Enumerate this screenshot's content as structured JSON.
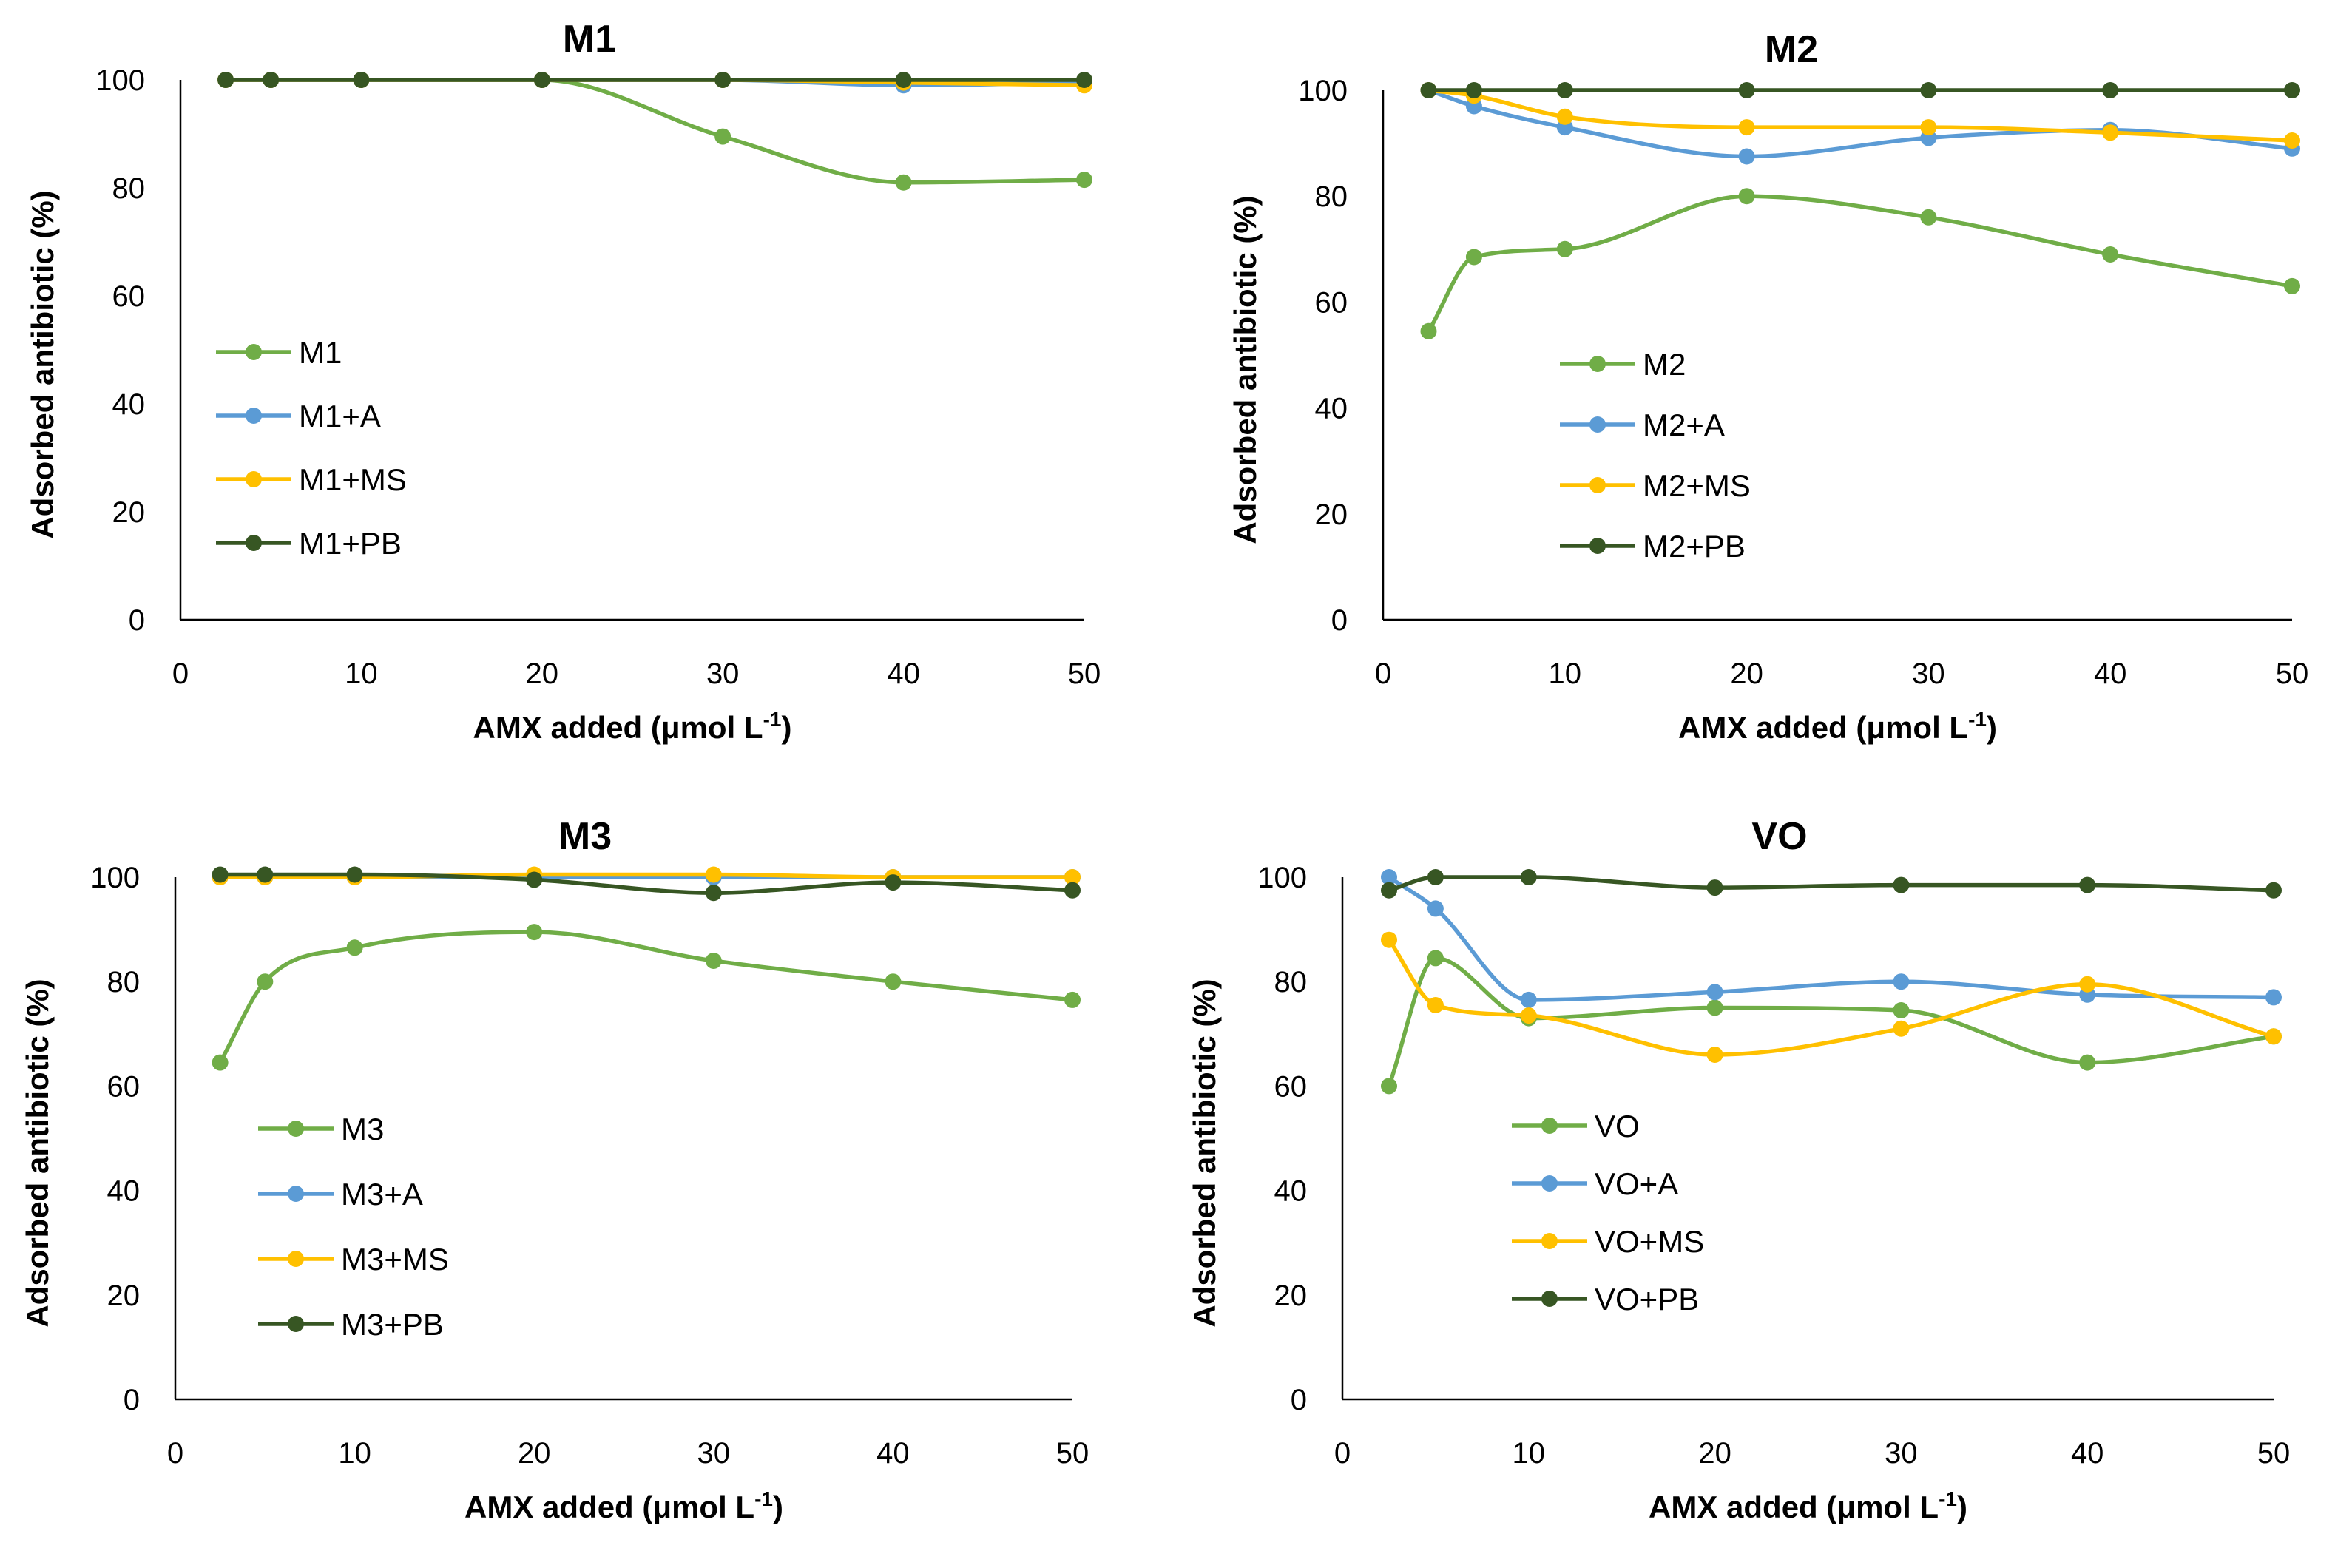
{
  "colors": {
    "green": "#70AD47",
    "blue": "#5B9BD5",
    "yellow": "#FFC000",
    "dark_green": "#375623"
  },
  "chart_data": [
    {
      "type": "line",
      "title": "M1",
      "xlabel": "AMX added (μmol L",
      "xlabel_sup": "-1",
      "xlabel_end": ")",
      "ylabel": "Adsorbed antibiotic (%)",
      "xlim": [
        0,
        50
      ],
      "ylim": [
        0,
        100
      ],
      "xticks": [
        0,
        10,
        20,
        30,
        40,
        50
      ],
      "yticks": [
        0,
        20,
        40,
        60,
        80,
        100
      ],
      "x": [
        2.5,
        5,
        10,
        20,
        30,
        40,
        50
      ],
      "series": [
        {
          "name": "M1",
          "color": "#70AD47",
          "values": [
            100,
            100,
            100,
            100,
            89.5,
            81,
            81.5
          ]
        },
        {
          "name": "M1+A",
          "color": "#5B9BD5",
          "values": [
            100,
            100,
            100,
            100,
            100,
            99,
            99.5
          ]
        },
        {
          "name": "M1+MS",
          "color": "#FFC000",
          "values": [
            100,
            100,
            100,
            100,
            100,
            99.5,
            99
          ]
        },
        {
          "name": "M1+PB",
          "color": "#375623",
          "values": [
            100,
            100,
            100,
            100,
            100,
            100,
            100
          ]
        }
      ]
    },
    {
      "type": "line",
      "title": "M2",
      "xlabel": "AMX added (μmol L",
      "xlabel_sup": "-1",
      "xlabel_end": ")",
      "ylabel": "Adsorbed antibiotic (%)",
      "xlim": [
        0,
        50
      ],
      "ylim": [
        0,
        100
      ],
      "xticks": [
        0,
        10,
        20,
        30,
        40,
        50
      ],
      "yticks": [
        0,
        20,
        40,
        60,
        80,
        100
      ],
      "x": [
        2.5,
        5,
        10,
        20,
        30,
        40,
        50
      ],
      "series": [
        {
          "name": "M2",
          "color": "#70AD47",
          "values": [
            54.5,
            68.5,
            70,
            80,
            76,
            69,
            63
          ]
        },
        {
          "name": "M2+A",
          "color": "#5B9BD5",
          "values": [
            100,
            97,
            93,
            87.5,
            91,
            92.5,
            89
          ]
        },
        {
          "name": "M2+MS",
          "color": "#FFC000",
          "values": [
            100,
            99,
            95,
            93,
            93,
            92,
            90.5
          ]
        },
        {
          "name": "M2+PB",
          "color": "#375623",
          "values": [
            100,
            100,
            100,
            100,
            100,
            100,
            100
          ]
        }
      ]
    },
    {
      "type": "line",
      "title": "M3",
      "xlabel": "AMX added (μmol L",
      "xlabel_sup": "-1",
      "xlabel_end": ")",
      "ylabel": "Adsorbed antibiotic (%)",
      "xlim": [
        0,
        50
      ],
      "ylim": [
        0,
        100
      ],
      "xticks": [
        0,
        10,
        20,
        30,
        40,
        50
      ],
      "yticks": [
        0,
        20,
        40,
        60,
        80,
        100
      ],
      "x": [
        2.5,
        5,
        10,
        20,
        30,
        40,
        50
      ],
      "series": [
        {
          "name": "M3",
          "color": "#70AD47",
          "values": [
            64.5,
            80,
            86.5,
            89.5,
            84,
            80,
            76.5
          ]
        },
        {
          "name": "M3+A",
          "color": "#5B9BD5",
          "values": [
            100,
            100,
            100,
            100,
            100,
            100,
            100
          ]
        },
        {
          "name": "M3+MS",
          "color": "#FFC000",
          "values": [
            100,
            100,
            100,
            100.5,
            100.5,
            100,
            100
          ]
        },
        {
          "name": "M3+PB",
          "color": "#375623",
          "values": [
            100.5,
            100.5,
            100.5,
            99.5,
            97,
            99,
            97.5
          ]
        }
      ]
    },
    {
      "type": "line",
      "title": "VO",
      "xlabel": "AMX added (μmol L",
      "xlabel_sup": "-1",
      "xlabel_end": ")",
      "ylabel": "Adsorbed antibiotic (%)",
      "xlim": [
        0,
        50
      ],
      "ylim": [
        0,
        100
      ],
      "xticks": [
        0,
        10,
        20,
        30,
        40,
        50
      ],
      "yticks": [
        0,
        20,
        40,
        60,
        80,
        100
      ],
      "x": [
        2.5,
        5,
        10,
        20,
        30,
        40,
        50
      ],
      "series": [
        {
          "name": "VO",
          "color": "#70AD47",
          "values": [
            60,
            84.5,
            73,
            75,
            74.5,
            64.5,
            69.5
          ]
        },
        {
          "name": "VO+A",
          "color": "#5B9BD5",
          "values": [
            100,
            94,
            76.5,
            78,
            80,
            77.5,
            77
          ]
        },
        {
          "name": "VO+MS",
          "color": "#FFC000",
          "values": [
            88,
            75.5,
            73.5,
            66,
            71,
            79.5,
            69.5
          ]
        },
        {
          "name": "VO+PB",
          "color": "#375623",
          "values": [
            97.5,
            100,
            100,
            98,
            98.5,
            98.5,
            97.5
          ]
        }
      ]
    }
  ]
}
